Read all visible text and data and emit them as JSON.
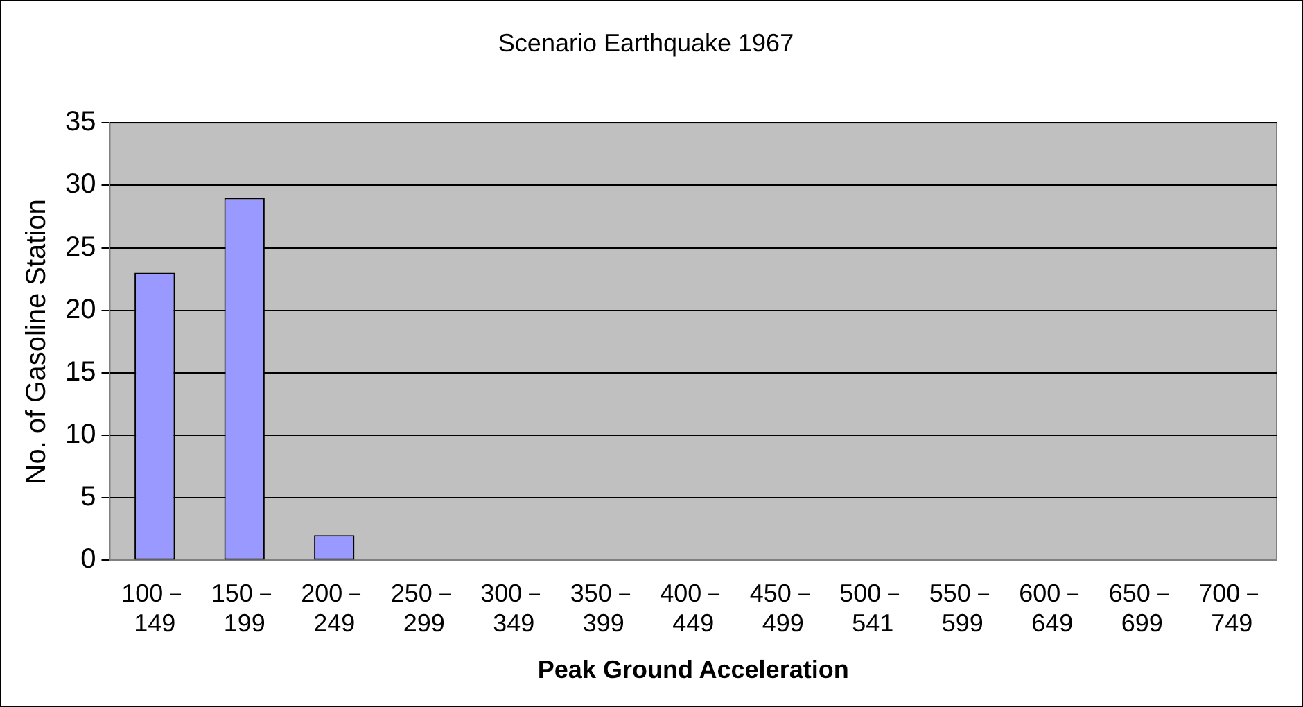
{
  "chart_data": {
    "type": "bar",
    "title": "Scenario Earthquake 1967",
    "xlabel": "Peak Ground Acceleration",
    "ylabel": "No. of Gasoline Station",
    "categories": [
      "100－149",
      "150－199",
      "200－249",
      "250－299",
      "300－349",
      "350－399",
      "400－449",
      "450－499",
      "500－541",
      "550－599",
      "600－649",
      "650－699",
      "700－749"
    ],
    "values": [
      23,
      29,
      2,
      0,
      0,
      0,
      0,
      0,
      0,
      0,
      0,
      0,
      0
    ],
    "color": "#9999ff",
    "ylim": [
      0,
      35
    ],
    "yticks": [
      0,
      5,
      10,
      15,
      20,
      25,
      30,
      35
    ],
    "grid": "y",
    "legend": false
  }
}
